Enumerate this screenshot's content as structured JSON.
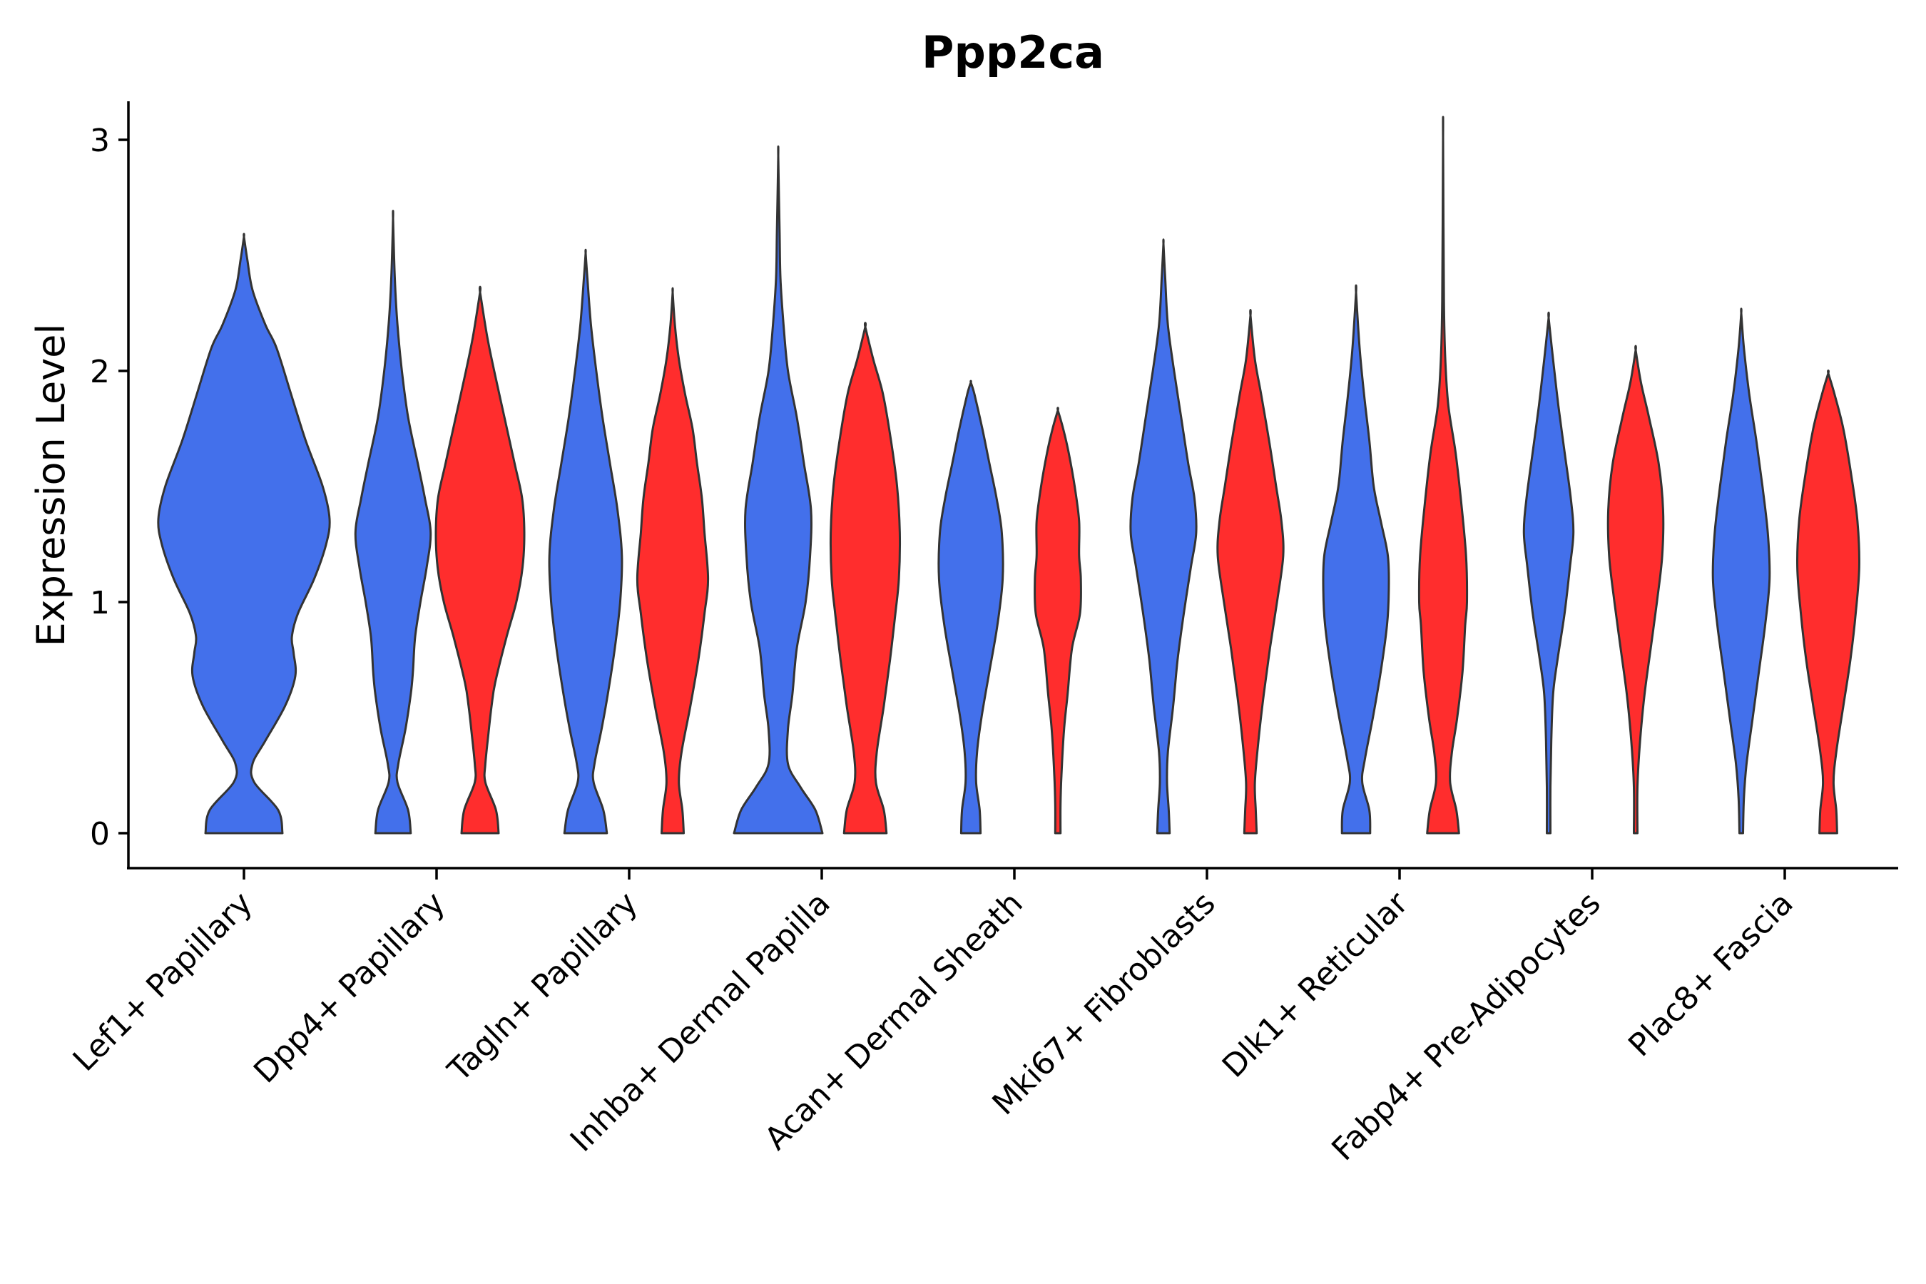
{
  "chart_data": {
    "type": "violin",
    "title": "Ppp2ca",
    "xlabel": "",
    "ylabel": "Expression Level",
    "ylim": [
      -0.15,
      3.15
    ],
    "yticks": [
      0,
      1,
      2,
      3
    ],
    "legend": "none",
    "colors": {
      "group1": "#4370EB",
      "group2": "#FF2D2D",
      "outline": "#333333"
    },
    "categories": [
      "Lef1+ Papillary",
      "Dpp4+ Papillary",
      "Tagln+ Papillary",
      "Inhba+ Dermal Papilla",
      "Acan+ Dermal Sheath",
      "Mki67+ Fibroblasts",
      "Dlk1+ Reticular",
      "Fabp4+ Pre-Adipocytes",
      "Plac8+ Fascia"
    ],
    "violins": [
      {
        "category": "Lef1+ Papillary",
        "group": 1,
        "max": 2.58,
        "profile": [
          [
            0,
            0.45
          ],
          [
            0.1,
            0.4
          ],
          [
            0.22,
            0.12
          ],
          [
            0.3,
            0.1
          ],
          [
            0.4,
            0.25
          ],
          [
            0.55,
            0.48
          ],
          [
            0.68,
            0.6
          ],
          [
            0.78,
            0.58
          ],
          [
            0.85,
            0.56
          ],
          [
            0.95,
            0.63
          ],
          [
            1.1,
            0.82
          ],
          [
            1.25,
            0.96
          ],
          [
            1.36,
            1.0
          ],
          [
            1.5,
            0.92
          ],
          [
            1.7,
            0.72
          ],
          [
            1.9,
            0.55
          ],
          [
            2.1,
            0.38
          ],
          [
            2.2,
            0.25
          ],
          [
            2.35,
            0.1
          ],
          [
            2.48,
            0.04
          ],
          [
            2.58,
            0.0
          ]
        ]
      },
      {
        "category": "Dpp4+ Papillary",
        "group": 1,
        "max": 2.66,
        "profile": [
          [
            0,
            0.4
          ],
          [
            0.1,
            0.34
          ],
          [
            0.22,
            0.1
          ],
          [
            0.3,
            0.12
          ],
          [
            0.45,
            0.28
          ],
          [
            0.6,
            0.4
          ],
          [
            0.7,
            0.45
          ],
          [
            0.85,
            0.5
          ],
          [
            1.0,
            0.62
          ],
          [
            1.15,
            0.76
          ],
          [
            1.3,
            0.85
          ],
          [
            1.45,
            0.72
          ],
          [
            1.6,
            0.56
          ],
          [
            1.8,
            0.34
          ],
          [
            2.0,
            0.2
          ],
          [
            2.2,
            0.1
          ],
          [
            2.4,
            0.04
          ],
          [
            2.66,
            0.0
          ]
        ]
      },
      {
        "category": "Dpp4+ Papillary",
        "group": 2,
        "max": 2.34,
        "profile": [
          [
            0,
            0.42
          ],
          [
            0.1,
            0.36
          ],
          [
            0.22,
            0.12
          ],
          [
            0.3,
            0.12
          ],
          [
            0.45,
            0.2
          ],
          [
            0.55,
            0.26
          ],
          [
            0.65,
            0.34
          ],
          [
            0.85,
            0.6
          ],
          [
            1.0,
            0.82
          ],
          [
            1.15,
            0.96
          ],
          [
            1.3,
            1.0
          ],
          [
            1.45,
            0.95
          ],
          [
            1.6,
            0.78
          ],
          [
            1.8,
            0.55
          ],
          [
            2.0,
            0.32
          ],
          [
            2.15,
            0.16
          ],
          [
            2.34,
            0.0
          ]
        ]
      },
      {
        "category": "Tagln+ Papillary",
        "group": 1,
        "max": 2.51,
        "profile": [
          [
            0,
            0.48
          ],
          [
            0.1,
            0.4
          ],
          [
            0.22,
            0.18
          ],
          [
            0.3,
            0.2
          ],
          [
            0.45,
            0.36
          ],
          [
            0.6,
            0.5
          ],
          [
            0.8,
            0.66
          ],
          [
            1.0,
            0.78
          ],
          [
            1.2,
            0.82
          ],
          [
            1.4,
            0.72
          ],
          [
            1.6,
            0.55
          ],
          [
            1.8,
            0.38
          ],
          [
            2.0,
            0.24
          ],
          [
            2.2,
            0.12
          ],
          [
            2.4,
            0.04
          ],
          [
            2.51,
            0.0
          ]
        ]
      },
      {
        "category": "Tagln+ Papillary",
        "group": 2,
        "max": 2.34,
        "profile": [
          [
            0,
            0.25
          ],
          [
            0.1,
            0.22
          ],
          [
            0.22,
            0.14
          ],
          [
            0.35,
            0.2
          ],
          [
            0.55,
            0.4
          ],
          [
            0.75,
            0.58
          ],
          [
            0.95,
            0.72
          ],
          [
            1.1,
            0.8
          ],
          [
            1.3,
            0.72
          ],
          [
            1.45,
            0.66
          ],
          [
            1.6,
            0.55
          ],
          [
            1.75,
            0.45
          ],
          [
            1.9,
            0.28
          ],
          [
            2.05,
            0.14
          ],
          [
            2.2,
            0.05
          ],
          [
            2.34,
            0.0
          ]
        ]
      },
      {
        "category": "Inhba+ Dermal Papilla",
        "group": 1,
        "max": 2.93,
        "profile": [
          [
            0,
            1.0
          ],
          [
            0.1,
            0.84
          ],
          [
            0.2,
            0.5
          ],
          [
            0.3,
            0.22
          ],
          [
            0.45,
            0.22
          ],
          [
            0.6,
            0.32
          ],
          [
            0.8,
            0.42
          ],
          [
            1.0,
            0.62
          ],
          [
            1.2,
            0.72
          ],
          [
            1.4,
            0.74
          ],
          [
            1.6,
            0.58
          ],
          [
            1.8,
            0.42
          ],
          [
            2.0,
            0.22
          ],
          [
            2.2,
            0.12
          ],
          [
            2.4,
            0.05
          ],
          [
            2.6,
            0.03
          ],
          [
            2.93,
            0.0
          ]
        ]
      },
      {
        "category": "Inhba+ Dermal Papilla",
        "group": 2,
        "max": 2.19,
        "profile": [
          [
            0,
            0.48
          ],
          [
            0.1,
            0.42
          ],
          [
            0.22,
            0.24
          ],
          [
            0.35,
            0.26
          ],
          [
            0.55,
            0.42
          ],
          [
            0.75,
            0.56
          ],
          [
            0.95,
            0.68
          ],
          [
            1.1,
            0.76
          ],
          [
            1.3,
            0.78
          ],
          [
            1.5,
            0.72
          ],
          [
            1.7,
            0.58
          ],
          [
            1.9,
            0.4
          ],
          [
            2.05,
            0.18
          ],
          [
            2.19,
            0.0
          ]
        ]
      },
      {
        "category": "Acan+ Dermal Sheath",
        "group": 1,
        "max": 1.95,
        "profile": [
          [
            0,
            0.22
          ],
          [
            0.1,
            0.2
          ],
          [
            0.22,
            0.12
          ],
          [
            0.35,
            0.14
          ],
          [
            0.5,
            0.24
          ],
          [
            0.7,
            0.42
          ],
          [
            0.9,
            0.6
          ],
          [
            1.1,
            0.72
          ],
          [
            1.3,
            0.7
          ],
          [
            1.45,
            0.58
          ],
          [
            1.6,
            0.42
          ],
          [
            1.75,
            0.26
          ],
          [
            1.9,
            0.08
          ],
          [
            1.95,
            0.0
          ]
        ]
      },
      {
        "category": "Acan+ Dermal Sheath",
        "group": 2,
        "max": 1.83,
        "profile": [
          [
            0,
            0.06
          ],
          [
            0.12,
            0.06
          ],
          [
            0.25,
            0.08
          ],
          [
            0.45,
            0.14
          ],
          [
            0.6,
            0.22
          ],
          [
            0.8,
            0.32
          ],
          [
            0.95,
            0.5
          ],
          [
            1.1,
            0.52
          ],
          [
            1.2,
            0.48
          ],
          [
            1.35,
            0.48
          ],
          [
            1.5,
            0.38
          ],
          [
            1.65,
            0.24
          ],
          [
            1.75,
            0.12
          ],
          [
            1.83,
            0.0
          ]
        ]
      },
      {
        "category": "Mki67+ Fibroblasts",
        "group": 1,
        "max": 2.55,
        "profile": [
          [
            0,
            0.14
          ],
          [
            0.1,
            0.12
          ],
          [
            0.22,
            0.08
          ],
          [
            0.35,
            0.1
          ],
          [
            0.55,
            0.22
          ],
          [
            0.75,
            0.32
          ],
          [
            0.95,
            0.46
          ],
          [
            1.15,
            0.62
          ],
          [
            1.3,
            0.74
          ],
          [
            1.45,
            0.7
          ],
          [
            1.6,
            0.56
          ],
          [
            1.8,
            0.4
          ],
          [
            2.0,
            0.24
          ],
          [
            2.2,
            0.1
          ],
          [
            2.4,
            0.04
          ],
          [
            2.55,
            0.0
          ]
        ]
      },
      {
        "category": "Mki67+ Fibroblasts",
        "group": 2,
        "max": 2.24,
        "profile": [
          [
            0,
            0.14
          ],
          [
            0.1,
            0.12
          ],
          [
            0.22,
            0.1
          ],
          [
            0.4,
            0.18
          ],
          [
            0.6,
            0.3
          ],
          [
            0.8,
            0.44
          ],
          [
            1.0,
            0.6
          ],
          [
            1.2,
            0.74
          ],
          [
            1.35,
            0.7
          ],
          [
            1.5,
            0.58
          ],
          [
            1.7,
            0.42
          ],
          [
            1.9,
            0.24
          ],
          [
            2.05,
            0.1
          ],
          [
            2.24,
            0.0
          ]
        ]
      },
      {
        "category": "Dlk1+ Reticular",
        "group": 1,
        "max": 2.34,
        "profile": [
          [
            0,
            0.32
          ],
          [
            0.1,
            0.3
          ],
          [
            0.22,
            0.14
          ],
          [
            0.32,
            0.2
          ],
          [
            0.5,
            0.38
          ],
          [
            0.7,
            0.56
          ],
          [
            0.9,
            0.7
          ],
          [
            1.05,
            0.74
          ],
          [
            1.2,
            0.72
          ],
          [
            1.35,
            0.56
          ],
          [
            1.5,
            0.4
          ],
          [
            1.7,
            0.3
          ],
          [
            1.9,
            0.18
          ],
          [
            2.1,
            0.08
          ],
          [
            2.34,
            0.0
          ]
        ]
      },
      {
        "category": "Dlk1+ Reticular",
        "group": 2,
        "max": 3.01,
        "profile": [
          [
            0,
            0.36
          ],
          [
            0.1,
            0.3
          ],
          [
            0.22,
            0.16
          ],
          [
            0.35,
            0.2
          ],
          [
            0.5,
            0.32
          ],
          [
            0.7,
            0.44
          ],
          [
            0.9,
            0.5
          ],
          [
            1.0,
            0.54
          ],
          [
            1.2,
            0.52
          ],
          [
            1.45,
            0.4
          ],
          [
            1.65,
            0.28
          ],
          [
            1.85,
            0.12
          ],
          [
            2.05,
            0.05
          ],
          [
            2.3,
            0.02
          ],
          [
            3.01,
            0.0
          ]
        ]
      },
      {
        "category": "Fabp4+ Pre-Adipocytes",
        "group": 1,
        "max": 2.23,
        "profile": [
          [
            0,
            0.04
          ],
          [
            0.2,
            0.04
          ],
          [
            0.4,
            0.06
          ],
          [
            0.6,
            0.1
          ],
          [
            0.75,
            0.2
          ],
          [
            0.95,
            0.36
          ],
          [
            1.15,
            0.48
          ],
          [
            1.3,
            0.56
          ],
          [
            1.45,
            0.5
          ],
          [
            1.65,
            0.36
          ],
          [
            1.85,
            0.22
          ],
          [
            2.05,
            0.1
          ],
          [
            2.23,
            0.0
          ]
        ]
      },
      {
        "category": "Fabp4+ Pre-Adipocytes",
        "group": 2,
        "max": 2.09,
        "profile": [
          [
            0,
            0.04
          ],
          [
            0.2,
            0.04
          ],
          [
            0.4,
            0.1
          ],
          [
            0.6,
            0.2
          ],
          [
            0.8,
            0.34
          ],
          [
            1.0,
            0.48
          ],
          [
            1.2,
            0.6
          ],
          [
            1.4,
            0.62
          ],
          [
            1.6,
            0.52
          ],
          [
            1.8,
            0.3
          ],
          [
            1.95,
            0.12
          ],
          [
            2.09,
            0.0
          ]
        ]
      },
      {
        "category": "Plac8+ Fascia",
        "group": 1,
        "max": 2.25,
        "profile": [
          [
            0,
            0.04
          ],
          [
            0.15,
            0.06
          ],
          [
            0.3,
            0.12
          ],
          [
            0.5,
            0.26
          ],
          [
            0.7,
            0.4
          ],
          [
            0.9,
            0.54
          ],
          [
            1.1,
            0.64
          ],
          [
            1.3,
            0.6
          ],
          [
            1.5,
            0.48
          ],
          [
            1.7,
            0.34
          ],
          [
            1.9,
            0.18
          ],
          [
            2.1,
            0.06
          ],
          [
            2.25,
            0.0
          ]
        ]
      },
      {
        "category": "Plac8+ Fascia",
        "group": 2,
        "max": 1.99,
        "profile": [
          [
            0,
            0.2
          ],
          [
            0.1,
            0.18
          ],
          [
            0.22,
            0.12
          ],
          [
            0.35,
            0.18
          ],
          [
            0.55,
            0.34
          ],
          [
            0.75,
            0.5
          ],
          [
            0.95,
            0.62
          ],
          [
            1.15,
            0.7
          ],
          [
            1.35,
            0.66
          ],
          [
            1.55,
            0.52
          ],
          [
            1.75,
            0.34
          ],
          [
            1.9,
            0.14
          ],
          [
            1.99,
            0.0
          ]
        ]
      }
    ]
  }
}
